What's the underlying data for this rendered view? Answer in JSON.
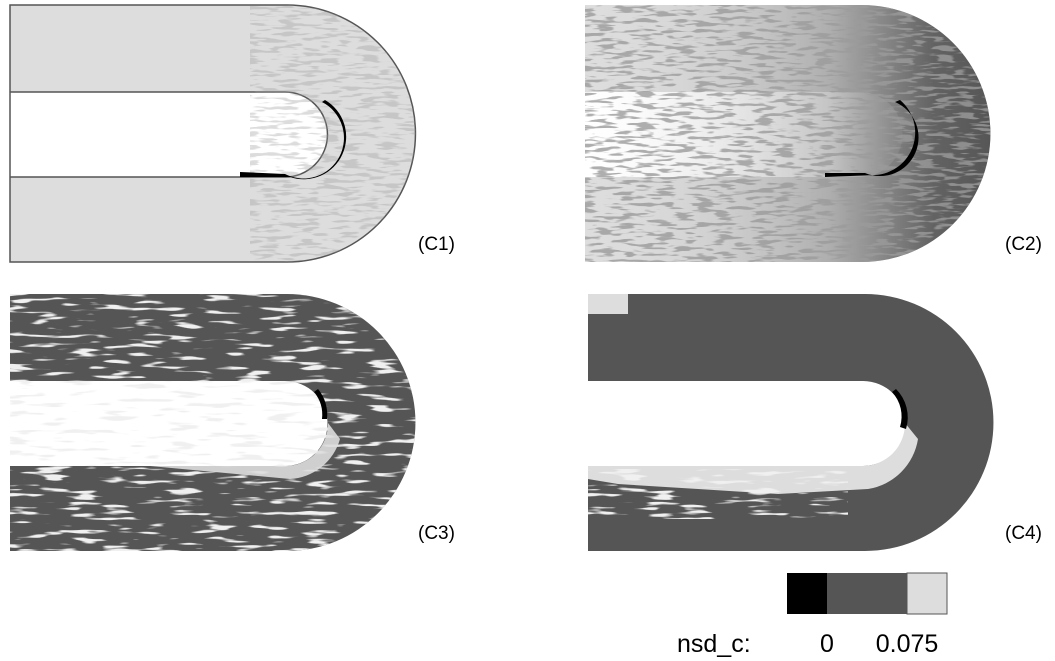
{
  "panels": [
    {
      "label": "(C1)"
    },
    {
      "label": "(C2)"
    },
    {
      "label": "(C3)"
    },
    {
      "label": "(C4)"
    }
  ],
  "legend": {
    "title": "nsd_c:",
    "ticks": [
      "0",
      "0.075"
    ]
  }
}
